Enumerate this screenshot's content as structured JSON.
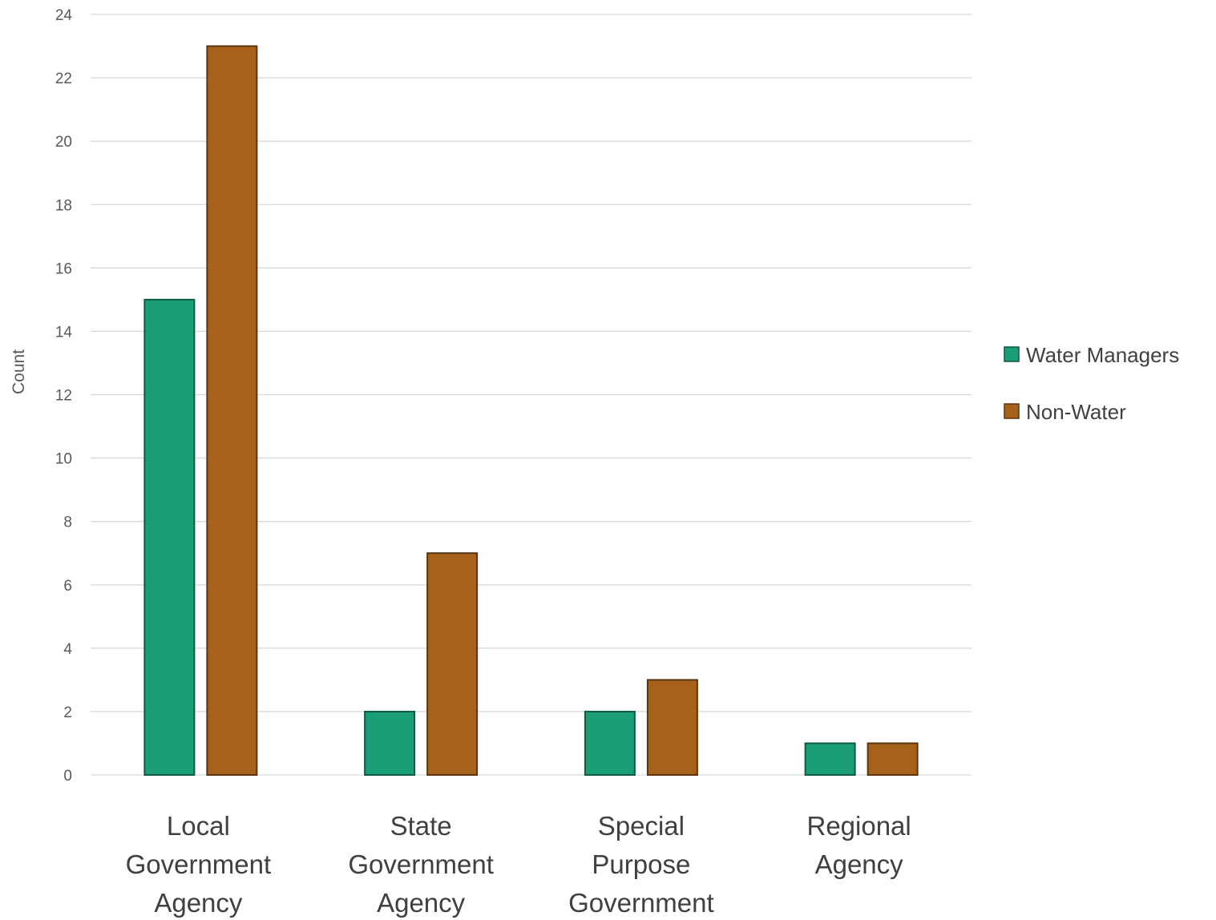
{
  "chart_data": {
    "type": "bar",
    "ylabel": "Count",
    "xlabel": "",
    "ylim": [
      0,
      24
    ],
    "y_ticks": [
      0,
      2,
      4,
      6,
      8,
      10,
      12,
      14,
      16,
      18,
      20,
      22,
      24
    ],
    "categories": [
      [
        "Local",
        "Government",
        "Agency"
      ],
      [
        "State",
        "Government",
        "Agency"
      ],
      [
        "Special",
        "Purpose",
        "Government"
      ],
      [
        "Regional",
        "Agency"
      ]
    ],
    "series": [
      {
        "name": "Water Managers",
        "color": "#1b9e77",
        "values": [
          15,
          2,
          2,
          1
        ]
      },
      {
        "name": "Non-Water",
        "color": "#a6611a",
        "values": [
          23,
          7,
          3,
          1
        ]
      }
    ],
    "grid": true,
    "legend_position": "right"
  }
}
